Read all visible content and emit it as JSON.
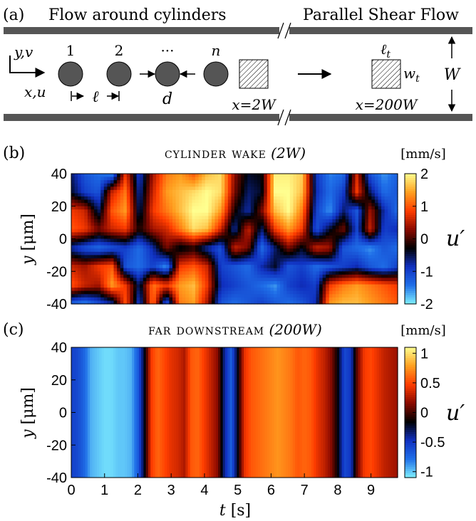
{
  "schematic": {
    "panel_label": "(a)",
    "left_title": "Flow around cylinders",
    "right_title": "Parallel Shear Flow",
    "axis_y_label": "y,v",
    "axis_x_label": "x,u",
    "cylinder_labels": [
      "1",
      "2",
      "···",
      "n"
    ],
    "spacing_label": "ℓ",
    "diameter_label": "d",
    "near_probe_label": "x=2W",
    "far_probe_label": "x=200W",
    "probe_length_label": "ℓ",
    "probe_length_sub": "t",
    "probe_width_label": "w",
    "probe_width_sub": "t",
    "channel_width_label": "W"
  },
  "chart_data": [
    {
      "type": "heatmap",
      "panel_label": "(b)",
      "title_sc": "cylinder wake",
      "title_math": "(2W)",
      "units": "[mm/s]",
      "ylabel_var": "y",
      "ylabel_unit": "[μm]",
      "yticks": [
        "40",
        "20",
        "0",
        "-20",
        "-40"
      ],
      "ylim": [
        -40,
        40
      ],
      "xlim": [
        0,
        9.8
      ],
      "colorbar_label": "u′",
      "colorbar_ticks": [
        "2",
        "1",
        "0",
        "-1",
        "-2"
      ],
      "colorbar_range": [
        -2,
        2
      ],
      "colormap": [
        "#7ff0ff",
        "#1f6fe8",
        "#1030c0",
        "#000000",
        "#8b0a00",
        "#ff3d00",
        "#ffa020",
        "#ffff90"
      ],
      "description_grid": {
        "rows_top_to_bottom": "40 to -40 um",
        "values": [
          [
            -0.6,
            -1.2,
            -1.4,
            -1.6,
            0.8,
            -1.0,
            0.4,
            1.2,
            1.4,
            1.0,
            1.6,
            1.8,
            0.3,
            -0.4,
            -0.3,
            1.9,
            1.9,
            1.7,
            -0.9,
            -1.5,
            -1.4,
            0.6,
            -1.2,
            -1.6,
            -1.3
          ],
          [
            -0.4,
            -1.0,
            -1.2,
            0.6,
            1.2,
            -0.8,
            0.6,
            1.4,
            1.6,
            1.8,
            2.0,
            1.8,
            0.2,
            -0.6,
            -0.4,
            2.0,
            2.0,
            1.6,
            -0.8,
            -1.4,
            -1.0,
            0.8,
            -0.6,
            -1.4,
            -1.2
          ],
          [
            0.8,
            0.6,
            -0.6,
            1.0,
            1.4,
            -0.6,
            0.8,
            1.2,
            1.6,
            2.0,
            2.0,
            1.4,
            -0.2,
            -0.8,
            0.2,
            1.6,
            2.0,
            1.2,
            -1.0,
            -1.6,
            -0.6,
            -1.2,
            0.4,
            -0.8,
            -1.4
          ],
          [
            1.0,
            0.8,
            0.2,
            0.6,
            0.8,
            -0.2,
            0.4,
            0.6,
            1.2,
            1.8,
            1.6,
            0.6,
            -0.8,
            0.6,
            -0.6,
            0.8,
            1.4,
            0.8,
            -1.2,
            -0.4,
            0.2,
            -1.0,
            0.6,
            -1.0,
            -0.8
          ],
          [
            -0.8,
            -1.2,
            -1.4,
            -1.2,
            -1.0,
            -1.4,
            -0.8,
            0.2,
            -0.4,
            -0.2,
            -0.8,
            -1.2,
            0.6,
            0.2,
            -1.4,
            -0.6,
            0.2,
            -0.4,
            0.6,
            0.4,
            -1.2,
            -1.4,
            -1.6,
            -1.2,
            -1.4
          ],
          [
            0.6,
            0.4,
            0.8,
            1.0,
            -1.2,
            -1.4,
            -1.0,
            -1.6,
            0.8,
            1.0,
            0.6,
            -1.0,
            -1.2,
            -1.4,
            -0.8,
            -0.4,
            -1.2,
            -1.0,
            -1.4,
            -1.2,
            -1.0,
            -0.8,
            -1.2,
            -1.4,
            -1.0
          ],
          [
            1.0,
            0.6,
            0.4,
            1.4,
            0.8,
            -0.6,
            1.2,
            0.8,
            1.4,
            1.6,
            0.8,
            -0.8,
            -1.0,
            -1.2,
            -1.4,
            -1.6,
            -1.0,
            -0.8,
            -1.0,
            0.8,
            1.2,
            1.4,
            1.2,
            1.0,
            0.8
          ],
          [
            -1.4,
            -1.6,
            -1.2,
            -0.8,
            1.0,
            -1.0,
            1.2,
            -1.4,
            1.2,
            1.4,
            0.4,
            -1.2,
            -1.4,
            -1.2,
            -1.0,
            -1.2,
            -1.4,
            -1.2,
            -0.8,
            1.4,
            1.6,
            1.6,
            1.4,
            1.2,
            1.0
          ]
        ]
      }
    },
    {
      "type": "heatmap",
      "panel_label": "(c)",
      "title_sc": "far downstream",
      "title_math": "(200W)",
      "units": "[mm/s]",
      "ylabel_var": "y",
      "ylabel_unit": "[μm]",
      "yticks": [
        "40",
        "20",
        "0",
        "-20",
        "-40"
      ],
      "ylim": [
        -40,
        40
      ],
      "xticks": [
        "0",
        "1",
        "2",
        "3",
        "4",
        "5",
        "6",
        "7",
        "8",
        "9"
      ],
      "xlim": [
        0,
        9.8
      ],
      "xlabel_var": "t",
      "xlabel_unit": "[s]",
      "colorbar_label": "u′",
      "colorbar_ticks": [
        "1",
        "0.5",
        "0",
        "-0.5",
        "-1"
      ],
      "colorbar_range": [
        -1.1,
        1.1
      ],
      "colormap": [
        "#7ff0ff",
        "#1f6fe8",
        "#1030c0",
        "#000000",
        "#8b0a00",
        "#ff3d00",
        "#ffa020",
        "#ffff90"
      ],
      "time_profile": {
        "t": [
          0.0,
          0.2,
          0.4,
          0.6,
          0.8,
          1.0,
          1.2,
          1.4,
          1.6,
          1.8,
          2.0,
          2.2,
          2.4,
          2.6,
          2.8,
          3.0,
          3.2,
          3.4,
          3.6,
          3.8,
          4.0,
          4.2,
          4.4,
          4.6,
          4.8,
          5.0,
          5.2,
          5.4,
          5.6,
          5.8,
          6.0,
          6.2,
          6.4,
          6.6,
          6.8,
          7.0,
          7.2,
          7.4,
          7.6,
          7.8,
          8.0,
          8.2,
          8.4,
          8.6,
          8.8,
          9.0,
          9.2,
          9.4,
          9.6,
          9.8
        ],
        "u": [
          -0.55,
          -0.6,
          -0.75,
          -0.95,
          -1.0,
          -1.05,
          -1.05,
          -1.0,
          -1.0,
          -0.95,
          -0.7,
          -0.2,
          0.45,
          0.6,
          0.5,
          0.4,
          0.35,
          0.25,
          0.55,
          0.6,
          0.45,
          0.3,
          0.15,
          -0.4,
          -0.7,
          -0.2,
          0.4,
          0.55,
          0.6,
          0.65,
          0.7,
          0.75,
          0.7,
          0.65,
          0.55,
          0.6,
          0.55,
          0.4,
          0.3,
          0.15,
          -0.15,
          -0.6,
          -0.5,
          0.1,
          0.45,
          0.5,
          0.4,
          0.3,
          0.25,
          0.2
        ]
      }
    }
  ]
}
